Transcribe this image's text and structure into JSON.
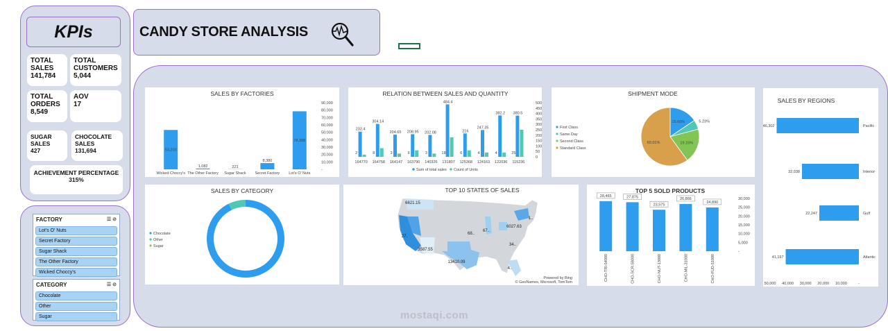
{
  "header": {
    "title": "CANDY STORE ANALYSIS"
  },
  "kpis": {
    "title": "KPIs",
    "total_sales": {
      "label": "TOTAL SALES",
      "value": "141,784"
    },
    "total_customers": {
      "label": "TOTAL CUSTOMERS",
      "value": "5,044"
    },
    "total_orders": {
      "label": "TOTAL ORDERS",
      "value": "8,549"
    },
    "aov": {
      "label": "AOV",
      "value": "17"
    },
    "sugar_sales": {
      "label": "SUGAR SALES",
      "value": "427"
    },
    "chocolate_sales": {
      "label": "CHOCOLATE SALES",
      "value": "131,694"
    },
    "achievement": {
      "label": "ACHIEVEMENT PERCENTAGE",
      "value": "315%"
    }
  },
  "slicers": {
    "factory": {
      "title": "FACTORY",
      "items": [
        "Lot's O' Nuts",
        "Secret Factory",
        "Sugar Shack",
        "The Other Factory",
        "Wicked Choccy's"
      ]
    },
    "category": {
      "title": "CATEGORY",
      "items": [
        "Chocolate",
        "Other",
        "Sugar"
      ]
    }
  },
  "colors": {
    "blue": "#2f9ded",
    "teal": "#50c8b4",
    "green": "#82c555",
    "orange": "#d8a04a",
    "lavender": "#d6dcea",
    "purple": "#9b6fc9"
  },
  "watermark": {
    "text": "mostaqi.com"
  },
  "chart_data": [
    {
      "id": "sales_by_factories",
      "type": "bar",
      "title": "SALES BY FACTORIES",
      "categories": [
        "Wicked Choccy's",
        "The Other Factory",
        "Sugar Shack",
        "Secret Factory",
        "Lot's O' Nuts"
      ],
      "values": [
        53203,
        1082,
        221,
        8380,
        78388
      ],
      "value_labels": [
        "53,203",
        "1,082",
        "221",
        "8,380",
        "78,388"
      ],
      "ylim": [
        0,
        90000
      ],
      "y_ticks": [
        "90,000",
        "80,000",
        "70,000",
        "60,000",
        "50,000",
        "40,000",
        "30,000",
        "20,000",
        "10,000",
        "-"
      ]
    },
    {
      "id": "relation_sales_quantity",
      "type": "bar",
      "title": "RELATION BETWEEN SALES AND QUANTITY",
      "categories": [
        "164770",
        "164758",
        "164147",
        "163790",
        "140326",
        "131807",
        "125368",
        "124163",
        "122036",
        "115236"
      ],
      "series": [
        {
          "name": "Sum of total sales",
          "values": [
            232.4,
            304.14,
            204.65,
            208.95,
            202.08,
            484.4,
            216,
            247.35,
            382.2,
            380.5
          ]
        },
        {
          "name": "Count of Units",
          "values": [
            2,
            8,
            3,
            6,
            3,
            18,
            6,
            4,
            4,
            25
          ]
        }
      ],
      "label_values": [
        "232.4",
        "304.14",
        "204.65",
        "208.95",
        "202.08",
        "484.4",
        "216",
        "247.35",
        "382.2",
        "380.5"
      ],
      "label_units": [
        "2",
        "8",
        "3",
        "6",
        "3",
        "18",
        "6",
        "4",
        "4",
        "25"
      ],
      "ylim": [
        0,
        500
      ],
      "y_ticks": [
        "500",
        "450",
        "400",
        "350",
        "300",
        "250",
        "200",
        "150",
        "100",
        "50",
        "0"
      ],
      "y2_ticks": [
        "50",
        "45",
        "40",
        "35",
        "30",
        "25",
        "20",
        "15",
        "10",
        "5",
        "0"
      ],
      "legend": [
        "Sum of total sales",
        "Count of Units"
      ]
    },
    {
      "id": "shipment_mode",
      "type": "pie",
      "title": "SHIPMENT MODE",
      "categories": [
        "First Class",
        "Same Day",
        "Second Class",
        "Standard Class"
      ],
      "values": [
        15.6,
        5.23,
        19.15,
        60.01
      ],
      "value_labels": [
        "15.60%",
        "5.23%",
        "19.15%",
        "60.01%"
      ],
      "legend": [
        "First Class",
        "Same Day",
        "Second Class",
        "Standard Class"
      ]
    },
    {
      "id": "sales_by_regions",
      "type": "bar",
      "title": "SALES BY REGIONS",
      "categories": [
        "Pacific",
        "Interior",
        "Gulf",
        "Atlantic"
      ],
      "values": [
        46302,
        32038,
        22247,
        41197
      ],
      "value_labels": [
        "46,302",
        "32,038",
        "22,247",
        "41,197"
      ],
      "x_ticks": [
        "50,000",
        "40,000",
        "30,000",
        "20,000",
        "10,000",
        "-"
      ],
      "xlim": [
        0,
        50000
      ]
    },
    {
      "id": "sales_by_category",
      "type": "pie",
      "title": "SALES BY CATEGORY",
      "categories": [
        "Chocolate",
        "Other",
        "Sugar"
      ],
      "values": [
        131694,
        9663,
        427
      ],
      "legend": [
        "Chocolate",
        "Other",
        "Sugar"
      ]
    },
    {
      "id": "top10_states",
      "type": "map",
      "title": "TOP 10 STATES OF SALES",
      "labels": [
        "6621.15",
        "27.",
        "3587.55",
        "13410.09",
        "68..",
        "67..",
        "6027.63",
        "34..",
        "4..",
        "1.."
      ],
      "credit": "Powered by Bing",
      "credit2": "© GeoNames, Microsoft, TomTom"
    },
    {
      "id": "top5_products",
      "type": "bar",
      "title": "TOP 5 SOLD PRODUCTS",
      "categories": [
        "CHO-TRI-54000",
        "CHO-SCR-58000",
        "CHO-NUT-13000",
        "CHO-MIL-31000",
        "CHO-FUD-51000"
      ],
      "values": [
        28465,
        27875,
        23575,
        26866,
        24890
      ],
      "value_labels": [
        "28,465",
        "27,875",
        "23,575",
        "26,866",
        "24,890"
      ],
      "ylim": [
        0,
        30000
      ],
      "y_ticks": [
        "30,000",
        "25,000",
        "20,000",
        "15,000",
        "10,000",
        "5,000",
        "-"
      ]
    }
  ]
}
